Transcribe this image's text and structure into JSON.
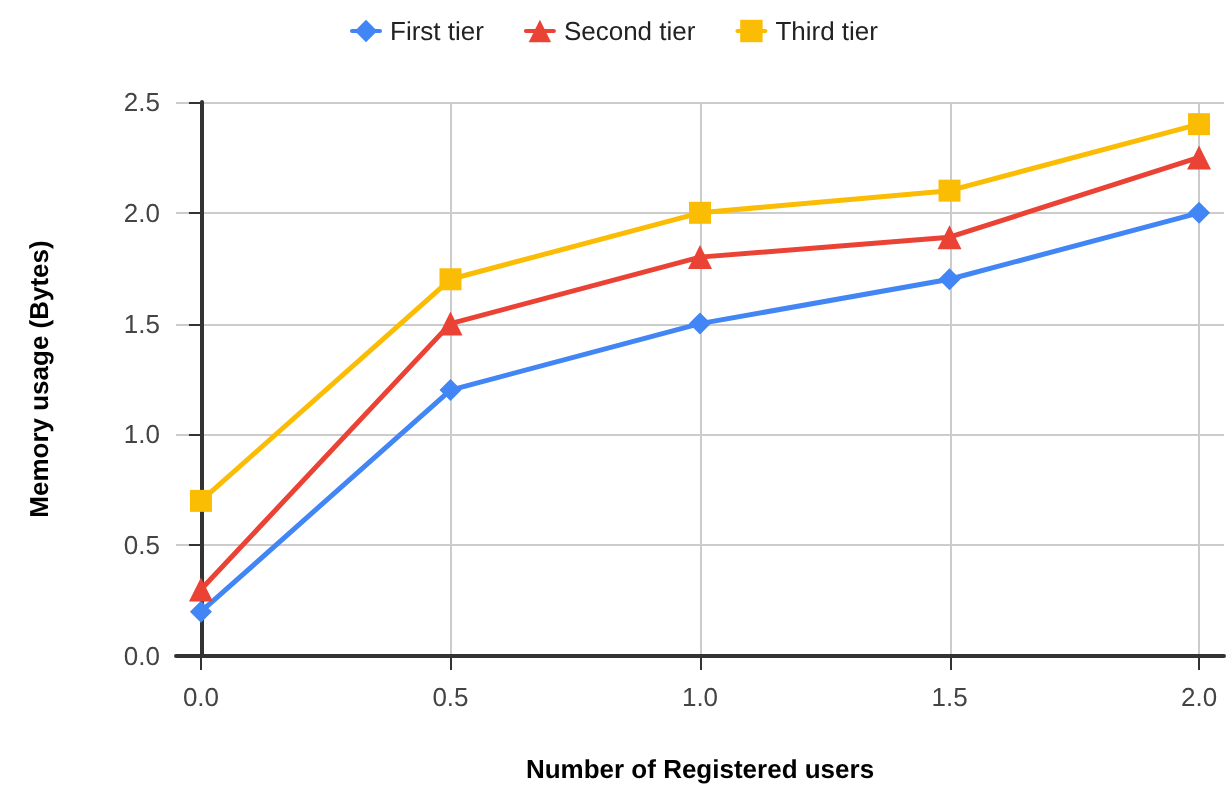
{
  "chart_data": {
    "type": "line",
    "xlabel": "Number of Registered users",
    "ylabel": "Memory usage (Bytes)",
    "x": [
      0,
      0.5,
      1,
      1.5,
      2
    ],
    "series": [
      {
        "name": "First tier",
        "color": "#4285f4",
        "marker": "diamond",
        "values": [
          0.2,
          1.2,
          1.5,
          1.7,
          2.0
        ]
      },
      {
        "name": "Second tier",
        "color": "#ea4335",
        "marker": "triangle",
        "values": [
          0.3,
          1.5,
          1.8,
          1.89,
          2.25
        ]
      },
      {
        "name": "Third tier",
        "color": "#fbbc04",
        "marker": "square",
        "values": [
          0.7,
          1.7,
          2.0,
          2.1,
          2.4
        ]
      }
    ],
    "xlim": [
      -0.05,
      2.05
    ],
    "xticks": [
      {
        "value": 0,
        "label": "0.0"
      },
      {
        "value": 0.5,
        "label": "0.5"
      },
      {
        "value": 1,
        "label": "1.0"
      },
      {
        "value": 1.5,
        "label": "1.5"
      },
      {
        "value": 2,
        "label": "2.0"
      }
    ],
    "ylim": [
      0,
      2.5
    ],
    "yticks": [
      {
        "value": 0,
        "label": "0.0"
      },
      {
        "value": 0.5,
        "label": "0.5"
      },
      {
        "value": 1,
        "label": "1.0"
      },
      {
        "value": 1.5,
        "label": "1.5"
      },
      {
        "value": 2,
        "label": "2.0"
      },
      {
        "value": 2.5,
        "label": "2.5"
      }
    ],
    "grid": true,
    "legend": "top",
    "line_style": "solid"
  }
}
